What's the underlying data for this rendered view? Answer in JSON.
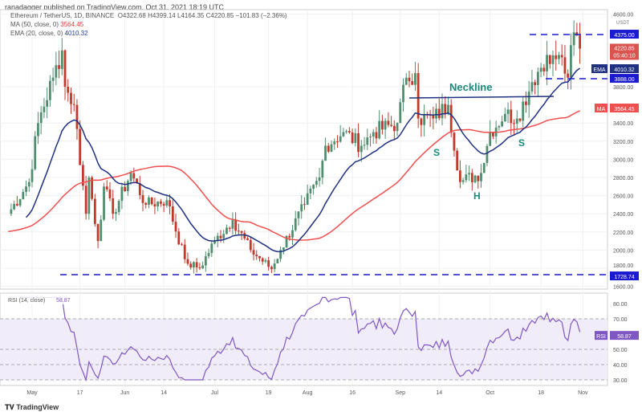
{
  "header": {
    "published": "ranadagger published on TradingView.com, Oct 31, 2021 18:19 UTC",
    "symbol": "Ethereum / TetherUS, 1D, BINANCE",
    "open": "O4322.68",
    "high": "H4399.14",
    "low": "L4164.35",
    "close": "C4220.85",
    "change": "−101.83 (−2.36%)",
    "ma_label": "MA (50, close, 0)",
    "ma_value": "3564.45",
    "ema_label": "EMA (20, close, 0)",
    "ema_value": "4010.32"
  },
  "colors": {
    "up": "#4f8f6f",
    "down": "#c0392b",
    "ma": "#ef4f4f",
    "ema": "#1f3180",
    "rsi": "#7e57c2",
    "level": "#1a1ad0"
  },
  "logo": "TradingView",
  "chart_data": [
    {
      "type": "candlestick",
      "title": "Ethereum / TetherUS, 1D",
      "currency": "USDT",
      "ylim": [
        1600,
        4600
      ],
      "y_ticks": [
        "4600.00",
        "3800.00",
        "3400.00",
        "3200.00",
        "3000.00",
        "2800.00",
        "2600.00",
        "2400.00",
        "2200.00",
        "2000.00",
        "1800.00",
        "1600.00"
      ],
      "y_tick_values": [
        4600,
        3800,
        3400,
        3200,
        3000,
        2800,
        2600,
        2400,
        2200,
        2000,
        1800,
        1600
      ],
      "x_ticks": [
        "May",
        "17",
        "Jun",
        "14",
        "Jul",
        "19",
        "Aug",
        "16",
        "Sep",
        "14",
        "Oct",
        "18",
        "Nov"
      ],
      "x_tick_days": [
        0,
        16,
        31,
        44,
        61,
        79,
        92,
        107,
        123,
        136,
        153,
        170,
        184
      ],
      "close_waypoints_day": [
        -8,
        -1,
        2,
        7,
        10,
        11,
        14,
        18,
        19,
        22,
        24,
        27,
        33,
        38,
        45,
        51,
        52,
        56,
        61,
        67,
        73,
        80,
        83,
        91,
        96,
        98,
        104,
        110,
        114,
        122,
        125,
        128,
        129,
        134,
        139,
        143,
        150,
        153,
        158,
        162,
        167,
        172,
        173,
        176,
        179,
        181,
        183
      ],
      "close_waypoints": [
        2400,
        2750,
        3400,
        3900,
        4200,
        3800,
        3600,
        2400,
        2800,
        2100,
        2700,
        2400,
        2850,
        2500,
        2550,
        1900,
        1850,
        1800,
        2100,
        2330,
        2000,
        1790,
        2000,
        2500,
        2800,
        3150,
        3300,
        3150,
        3300,
        3400,
        3900,
        3950,
        3450,
        3450,
        3600,
        2750,
        2850,
        3300,
        3500,
        3450,
        3850,
        4150,
        4050,
        4150,
        3900,
        4400,
        4220
      ],
      "price_labels": {
        "resist": "4375.00",
        "last": "4220.85",
        "countdown": "05:40:10",
        "ema": "4010.32",
        "support_mid": "3888.00",
        "ma": "3564.45",
        "support": "1728.74",
        "ema_tag": "EMA",
        "ma_tag": "MA"
      },
      "levels": [
        4375,
        3888,
        1728.74
      ],
      "annotations": {
        "neckline": "Neckline",
        "s1": "S",
        "h": "H",
        "s2": "S"
      }
    },
    {
      "type": "line",
      "title": "RSI (14, close)",
      "value": "58.87",
      "tag": "RSI",
      "ylim": [
        25,
        85
      ],
      "y_ticks": [
        "80.00",
        "70.00",
        "50.00",
        "40.00",
        "30.00"
      ],
      "y_tick_values": [
        80,
        70,
        50,
        40,
        30
      ]
    }
  ]
}
